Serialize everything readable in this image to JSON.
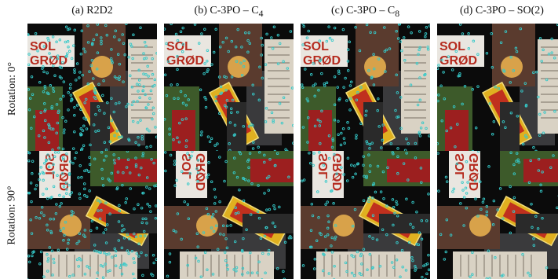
{
  "columns": [
    {
      "letter": "(a)",
      "name": "R2D2",
      "sub": "",
      "suffix": ""
    },
    {
      "letter": "(b)",
      "name": "C-3PO – C",
      "sub": "4",
      "suffix": ""
    },
    {
      "letter": "(c)",
      "name": "C-3PO – C",
      "sub": "8",
      "suffix": ""
    },
    {
      "letter": "(d)",
      "name": "C-3PO – SO(2)",
      "sub": "",
      "suffix": ""
    }
  ],
  "rows": [
    {
      "label": "Rotation: 0°"
    },
    {
      "label": "Rotation: 90°"
    }
  ],
  "sign_text": {
    "line1": "SOL",
    "line2": "GRØD"
  },
  "colors": {
    "keypoint": "#35c9c9",
    "box_yellow": "#e0b020",
    "box_red": "#c0301e",
    "background": "#0b0b0b"
  },
  "keypoint_density": [
    1.0,
    0.55,
    0.6,
    0.35
  ]
}
